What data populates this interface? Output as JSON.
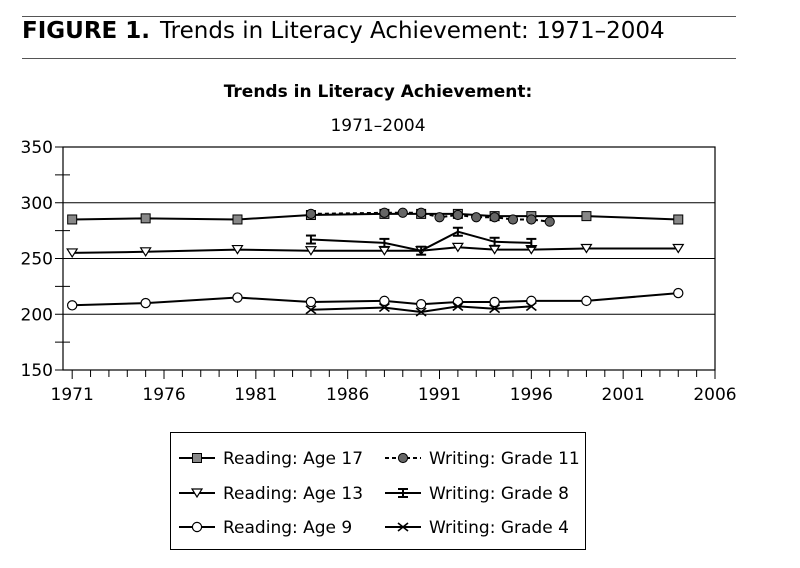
{
  "figure": {
    "number": "FIGURE 1.",
    "title": "Trends in Literacy Achievement: 1971–2004"
  },
  "chart_data": {
    "type": "line",
    "title": "Trends in Literacy Achievement:",
    "subtitle": "1971–2004",
    "xlabel": "",
    "ylabel": "",
    "xlim": [
      1970.5,
      2006
    ],
    "ylim": [
      150,
      350
    ],
    "x_ticks": [
      1971,
      1976,
      1981,
      1986,
      1991,
      1996,
      2001,
      2006
    ],
    "y_ticks": [
      150,
      200,
      250,
      300,
      350
    ],
    "grid": "horizontal at 200, 250, 300",
    "legend_position": "bottom",
    "series": [
      {
        "name": "Reading: Age 17",
        "marker": "square",
        "dashed": false,
        "x": [
          1971,
          1975,
          1980,
          1984,
          1988,
          1990,
          1992,
          1994,
          1996,
          1999,
          2004
        ],
        "y": [
          285,
          286,
          285,
          289,
          290,
          290,
          290,
          288,
          288,
          288,
          285
        ]
      },
      {
        "name": "Writing: Grade 11",
        "marker": "circle-filled",
        "dashed": true,
        "x": [
          1984,
          1988,
          1989,
          1990,
          1991,
          1992,
          1993,
          1994,
          1995,
          1996,
          1997
        ],
        "y": [
          290,
          291,
          291,
          291,
          287,
          289,
          287,
          287,
          285,
          285,
          283
        ]
      },
      {
        "name": "Reading: Age 13",
        "marker": "triangle-down",
        "dashed": false,
        "x": [
          1971,
          1975,
          1980,
          1984,
          1988,
          1990,
          1992,
          1994,
          1996,
          1999,
          2004
        ],
        "y": [
          255,
          256,
          258,
          257,
          257,
          257,
          260,
          258,
          258,
          259,
          259
        ]
      },
      {
        "name": "Writing: Grade 8",
        "marker": "bar-cross",
        "dashed": false,
        "x": [
          1984,
          1988,
          1990,
          1992,
          1994,
          1996
        ],
        "y": [
          267,
          264,
          257,
          274,
          265,
          264
        ]
      },
      {
        "name": "Reading: Age 9",
        "marker": "circle-open",
        "dashed": false,
        "x": [
          1971,
          1975,
          1980,
          1984,
          1988,
          1990,
          1992,
          1994,
          1996,
          1999,
          2004
        ],
        "y": [
          208,
          210,
          215,
          211,
          212,
          209,
          211,
          211,
          212,
          212,
          219
        ]
      },
      {
        "name": "Writing: Grade 4",
        "marker": "x",
        "dashed": false,
        "x": [
          1984,
          1988,
          1990,
          1992,
          1994,
          1996
        ],
        "y": [
          204,
          206,
          202,
          207,
          205,
          207
        ]
      }
    ]
  }
}
